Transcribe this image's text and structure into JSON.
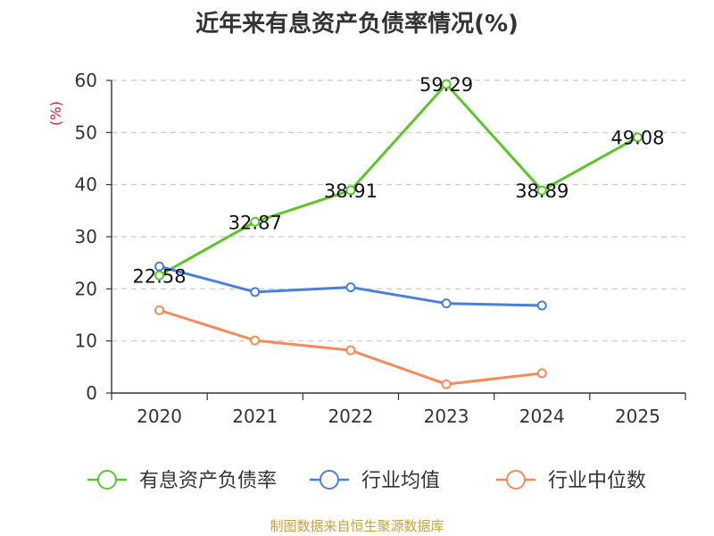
{
  "chart_data": {
    "type": "line",
    "title": "近年来有息资产负债率情况(%)",
    "ylabel": "(%)",
    "xlabel": "",
    "categories": [
      "2020",
      "2021",
      "2022",
      "2023",
      "2024",
      "2025"
    ],
    "ylim": [
      0,
      60
    ],
    "yticks": [
      0,
      10,
      20,
      30,
      40,
      50,
      60
    ],
    "grid": true,
    "legend_position": "bottom",
    "series": [
      {
        "name": "有息资产负债率",
        "color": "#5cc52a",
        "values": [
          22.58,
          32.87,
          38.91,
          59.29,
          38.89,
          49.08
        ],
        "labels": [
          "22.58",
          "32.87",
          "38.91",
          "59.29",
          "38.89",
          "49.08"
        ]
      },
      {
        "name": "行业均值",
        "color": "#4a7fdc",
        "values": [
          24.3,
          19.4,
          20.3,
          17.2,
          16.8,
          null
        ]
      },
      {
        "name": "行业中位数",
        "color": "#f38c5a",
        "values": [
          15.9,
          10.1,
          8.2,
          1.7,
          3.8,
          null
        ]
      }
    ]
  },
  "source": "制图数据来自恒生聚源数据库"
}
